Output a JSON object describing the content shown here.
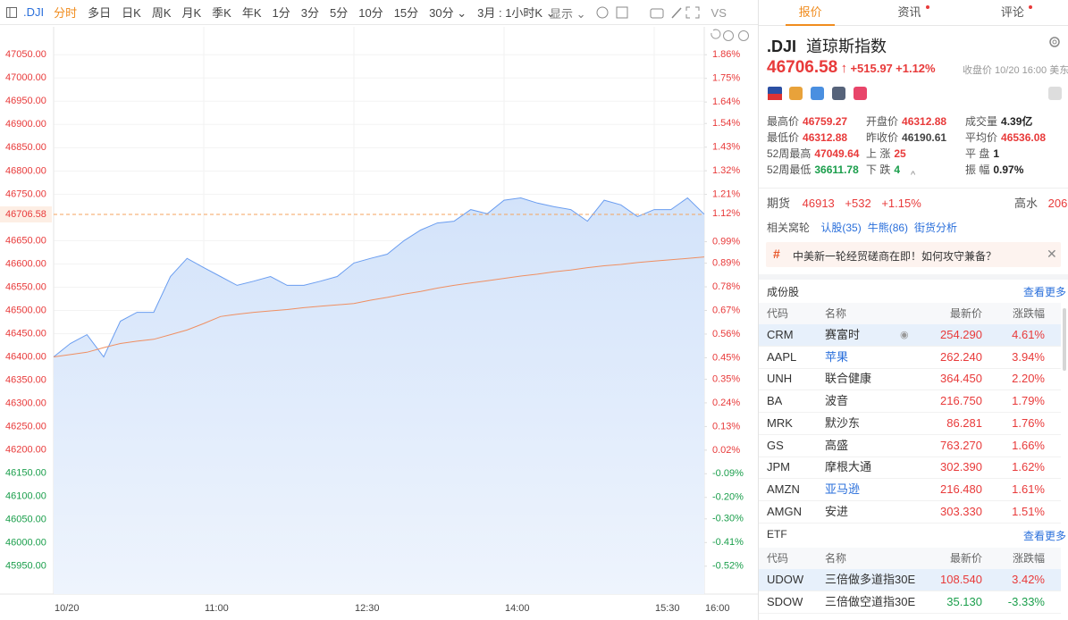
{
  "toolbar": {
    "symbol": ".DJI",
    "tabs": [
      "分时",
      "多日",
      "日K",
      "周K",
      "月K",
      "季K",
      "年K",
      "1分",
      "3分",
      "5分",
      "10分",
      "15分",
      "30分",
      "3月 : 1小时K"
    ],
    "active_color": "#f08c1e",
    "display": "显示",
    "vs": "VS"
  },
  "chart_data": {
    "type": "line",
    "x": [
      "09:30",
      "09:40",
      "09:50",
      "10:00",
      "10:10",
      "10:20",
      "10:30",
      "10:40",
      "10:50",
      "11:00",
      "11:10",
      "11:20",
      "11:30",
      "11:40",
      "11:50",
      "12:00",
      "12:10",
      "12:20",
      "12:30",
      "12:40",
      "12:50",
      "13:00",
      "13:10",
      "13:20",
      "13:30",
      "13:40",
      "13:50",
      "14:00",
      "14:10",
      "14:20",
      "14:30",
      "14:40",
      "14:50",
      "15:00",
      "15:10",
      "15:20",
      "15:30",
      "15:40",
      "15:50",
      "16:00"
    ],
    "series": [
      {
        "color": "#6a9df0",
        "fill": "#dce9fb",
        "values": [
          46400,
          46429,
          46448,
          46400,
          46477,
          46496,
          46496,
          46573,
          46612,
          46592,
          46573,
          46554,
          46563,
          46573,
          46554,
          46554,
          46563,
          46573,
          46602,
          46612,
          46621,
          46650,
          46673,
          46688,
          46692,
          46717,
          46708,
          46737,
          46742,
          46731,
          46723,
          46717,
          46692,
          46737,
          46727,
          46702,
          46717,
          46717,
          46742,
          46707
        ]
      },
      {
        "color": "#ef8f62",
        "values": [
          46400,
          46405,
          46410,
          46420,
          46429,
          46434,
          46438,
          46448,
          46458,
          46472,
          46487,
          46492,
          46496,
          46499,
          46502,
          46506,
          46509,
          46512,
          46515,
          46522,
          46528,
          46535,
          46541,
          46548,
          46554,
          46559,
          46564,
          46569,
          46574,
          46578,
          46583,
          46587,
          46592,
          46596,
          46599,
          46603,
          46606,
          46609,
          46612,
          46615
        ]
      }
    ],
    "xlim": [
      "09:30",
      "16:00"
    ],
    "xticks": [
      {
        "value": "09:30",
        "label": "10/20"
      },
      "11:00",
      "12:30",
      "14:00",
      "15:30",
      "16:00"
    ],
    "ylim": [
      45890,
      47110
    ],
    "yticks": [
      {
        "value": 47050,
        "label": "47050.00"
      },
      {
        "value": 47000,
        "label": "47000.00"
      },
      {
        "value": 46950,
        "label": "46950.00"
      },
      {
        "value": 46900,
        "label": "46900.00"
      },
      {
        "value": 46850,
        "label": "46850.00"
      },
      {
        "value": 46800,
        "label": "46800.00"
      },
      {
        "value": 46750,
        "label": "46750.00"
      },
      {
        "value": 46650,
        "label": "46650.00"
      },
      {
        "value": 46600,
        "label": "46600.00"
      },
      {
        "value": 46550,
        "label": "46550.00"
      },
      {
        "value": 46500,
        "label": "46500.00"
      },
      {
        "value": 46450,
        "label": "46450.00"
      },
      {
        "value": 46400,
        "label": "46400.00"
      },
      {
        "value": 46350,
        "label": "46350.00"
      },
      {
        "value": 46300,
        "label": "46300.00"
      },
      {
        "value": 46250,
        "label": "46250.00"
      },
      {
        "value": 46200,
        "label": "46200.00"
      },
      {
        "value": 46150,
        "label": "46150.00"
      },
      {
        "value": 46100,
        "label": "46100.00"
      },
      {
        "value": 46050,
        "label": "46050.00"
      },
      {
        "value": 46000,
        "label": "46000.00"
      },
      {
        "value": 45950,
        "label": "45950.00"
      }
    ],
    "y2lim": [
      -0.65,
      1.99
    ],
    "y2ticks": [
      {
        "value": 1.86,
        "label": "1.86%"
      },
      {
        "value": 1.75,
        "label": "1.75%"
      },
      {
        "value": 1.64,
        "label": "1.64%"
      },
      {
        "value": 1.54,
        "label": "1.54%"
      },
      {
        "value": 1.43,
        "label": "1.43%"
      },
      {
        "value": 1.32,
        "label": "1.32%"
      },
      {
        "value": 1.21,
        "label": "1.21%"
      },
      {
        "value": 0.99,
        "label": "0.99%"
      },
      {
        "value": 0.89,
        "label": "0.89%"
      },
      {
        "value": 0.78,
        "label": "0.78%"
      },
      {
        "value": 0.67,
        "label": "0.67%"
      },
      {
        "value": 0.56,
        "label": "0.56%"
      },
      {
        "value": 0.45,
        "label": "0.45%"
      },
      {
        "value": 0.35,
        "label": "0.35%"
      },
      {
        "value": 0.24,
        "label": "0.24%"
      },
      {
        "value": 0.13,
        "label": "0.13%"
      },
      {
        "value": 0.02,
        "label": "0.02%"
      },
      {
        "value": -0.09,
        "label": "-0.09%"
      },
      {
        "value": -0.2,
        "label": "-0.20%"
      },
      {
        "value": -0.3,
        "label": "-0.30%"
      },
      {
        "value": -0.41,
        "label": "-0.41%"
      },
      {
        "value": -0.52,
        "label": "-0.52%"
      }
    ],
    "up_color": "#e83a3a",
    "down_color": "#1a9e4b",
    "grid": true,
    "reference_line": {
      "value": 46706.58,
      "y2": {
        "value": 1.12,
        "label": "1.12%"
      },
      "color": "#f5a35c"
    }
  },
  "quote_panel": {
    "tabs": [
      "报价",
      "资讯",
      "评论"
    ],
    "code": ".DJI",
    "name": "道琼斯指数",
    "price": "46706.58",
    "change": "+515.97",
    "change_pct": "+1.12%",
    "close_info": "收盘价 10/20 16:00 美东",
    "stats": [
      [
        {
          "label": "最高价",
          "value": "46759.27",
          "color": "#e83a3a"
        },
        {
          "label": "开盘价",
          "value": "46312.88",
          "color": "#e83a3a"
        },
        {
          "label": "成交量",
          "value": "4.39亿",
          "color": "#222"
        }
      ],
      [
        {
          "label": "最低价",
          "value": "46312.88",
          "color": "#e83a3a"
        },
        {
          "label": "昨收价",
          "value": "46190.61",
          "color": "#444"
        },
        {
          "label": "平均价",
          "value": "46536.08",
          "color": "#e83a3a"
        }
      ],
      [
        {
          "label": "52周最高",
          "value": "47049.64",
          "color": "#e83a3a"
        },
        {
          "label": "上 涨",
          "value": "25",
          "color": "#e83a3a"
        },
        {
          "label": "平 盘",
          "value": "1",
          "color": "#222"
        }
      ],
      [
        {
          "label": "52周最低",
          "value": "36611.78",
          "color": "#1a9e4b"
        },
        {
          "label": "下 跌",
          "value": "4",
          "color": "#1a9e4b"
        },
        {
          "label": "振 幅",
          "value": "0.97%",
          "color": "#222"
        }
      ]
    ],
    "futures": {
      "label": "期货",
      "price": "46913",
      "change": "+532",
      "change_pct": "+1.15%",
      "premium_label": "高水",
      "premium": "206"
    },
    "related": {
      "label": "相关窝轮",
      "links": [
        "认股(35)",
        "牛熊(86)",
        "街货分析"
      ]
    },
    "news": "中美新一轮经贸磋商在即！如何攻守兼备？",
    "components": {
      "title": "成份股",
      "more": "查看更多",
      "header": [
        "代码",
        "名称",
        "最新价",
        "涨跌幅"
      ],
      "rows": [
        {
          "cells": [
            "CRM",
            "赛富时",
            "254.290",
            "4.61%"
          ],
          "color": "#e83a3a",
          "selected": true
        },
        {
          "cells": [
            "AAPL",
            "苹果",
            "262.240",
            "3.94%"
          ],
          "color": "#e83a3a",
          "name_color": "#2a6fdb"
        },
        {
          "cells": [
            "UNH",
            "联合健康",
            "364.450",
            "2.20%"
          ],
          "color": "#e83a3a"
        },
        {
          "cells": [
            "BA",
            "波音",
            "216.750",
            "1.79%"
          ],
          "color": "#e83a3a"
        },
        {
          "cells": [
            "MRK",
            "默沙东",
            "86.281",
            "1.76%"
          ],
          "color": "#e83a3a"
        },
        {
          "cells": [
            "GS",
            "高盛",
            "763.270",
            "1.66%"
          ],
          "color": "#e83a3a"
        },
        {
          "cells": [
            "JPM",
            "摩根大通",
            "302.390",
            "1.62%"
          ],
          "color": "#e83a3a"
        },
        {
          "cells": [
            "AMZN",
            "亚马逊",
            "216.480",
            "1.61%"
          ],
          "color": "#e83a3a",
          "name_color": "#2a6fdb"
        },
        {
          "cells": [
            "AMGN",
            "安进",
            "303.330",
            "1.51%"
          ],
          "color": "#e83a3a"
        }
      ]
    },
    "etf": {
      "title": "ETF",
      "more": "查看更多",
      "header": [
        "代码",
        "名称",
        "最新价",
        "涨跌幅"
      ],
      "rows": [
        {
          "cells": [
            "UDOW",
            "三倍做多道指30E",
            "108.540",
            "3.42%"
          ],
          "color": "#e83a3a",
          "selected": true
        },
        {
          "cells": [
            "SDOW",
            "三倍做空道指30E",
            "35.130",
            "-3.33%"
          ],
          "color": "#1a9e4b"
        }
      ]
    }
  }
}
